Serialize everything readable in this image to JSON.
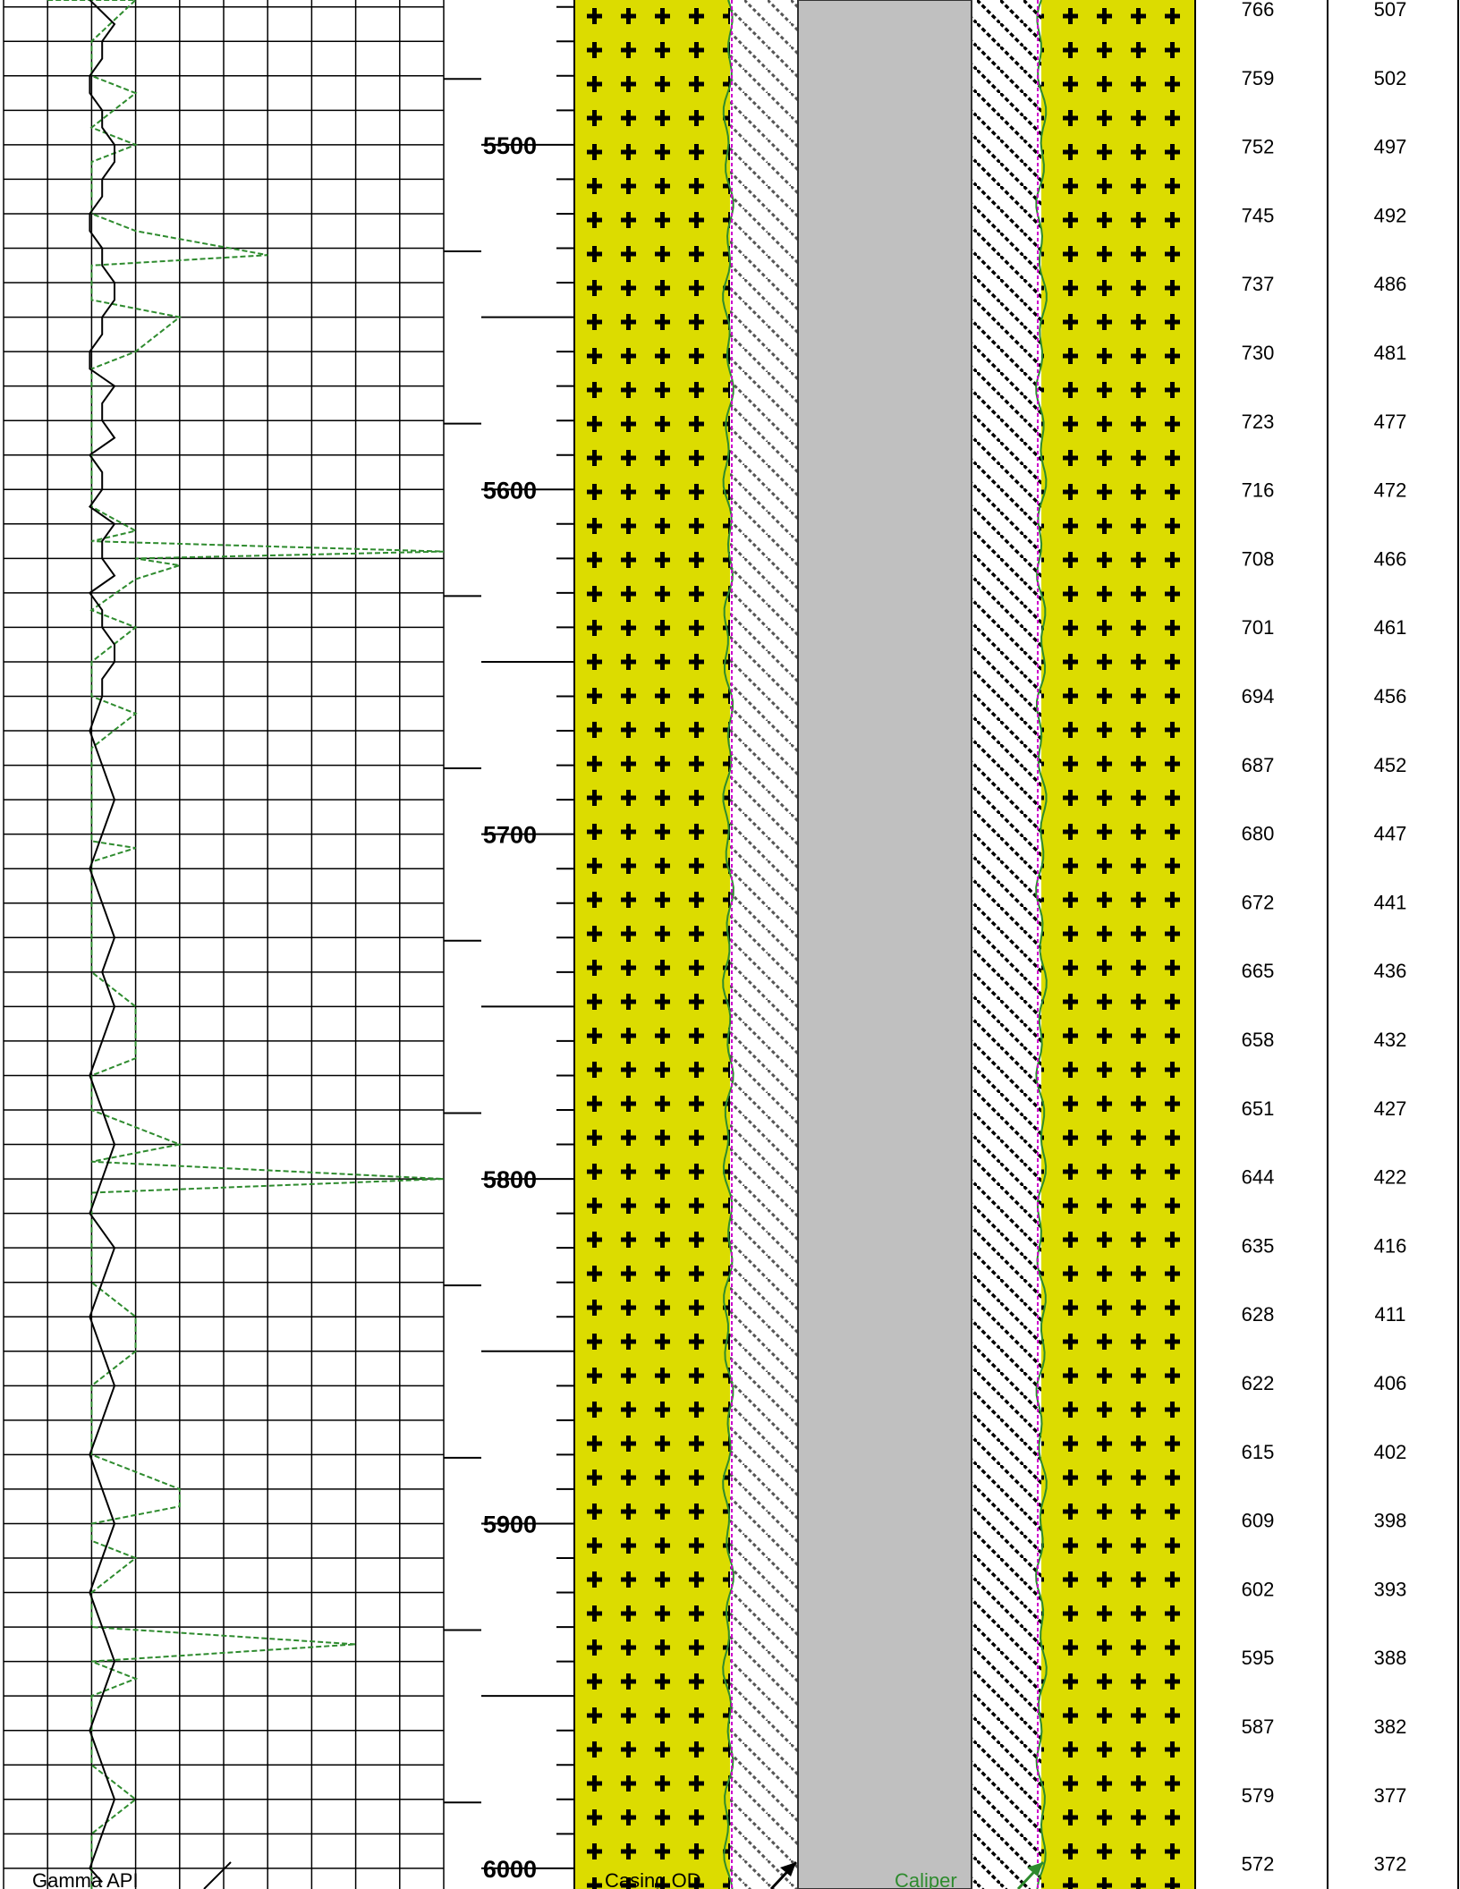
{
  "colors": {
    "gamma_curve": "#2e8b2e",
    "resistivity_curve": "#000000",
    "formation_fill": "#dcdc00",
    "cross_mark": "#000000",
    "casing_core": "#c0c0c0",
    "bit_line": "#cc00cc",
    "caliper_outline": "#2e8b2e",
    "grid": "#000000"
  },
  "labels": {
    "gamma": "Gamma API",
    "casing": "Casing OD",
    "caliper": "Caliper"
  },
  "chart_data": [
    {
      "type": "line",
      "title": "",
      "series": [
        {
          "name": "Gamma API",
          "x": [
            1,
            2,
            3,
            2,
            6,
            2,
            3,
            2,
            2,
            3,
            2,
            10,
            4,
            3,
            3,
            2,
            2,
            2,
            2,
            3,
            2,
            2,
            2,
            3,
            3,
            2,
            2,
            4,
            10,
            2,
            2,
            2,
            2,
            3,
            2,
            2,
            2,
            3,
            2,
            2,
            8,
            2,
            3,
            2,
            3,
            2,
            2,
            2,
            2,
            2,
            3,
            2,
            2,
            3,
            2,
            2,
            2,
            3,
            2,
            4,
            2,
            2,
            2,
            2,
            3,
            2,
            2,
            3,
            2,
            2,
            2,
            2,
            3,
            2,
            2,
            2,
            2,
            3,
            2,
            4,
            4,
            2,
            2,
            2,
            2,
            2
          ],
          "y": [
            5458,
            5480,
            5500,
            5520,
            5532,
            5545,
            5560,
            5580,
            5600,
            5612,
            5615,
            5618,
            5622,
            5626,
            5640,
            5660,
            5680,
            5700,
            5702,
            5704,
            5708,
            5720,
            5740,
            5760,
            5765,
            5770,
            5780,
            5790,
            5800,
            5804,
            5808,
            5812,
            5820,
            5840,
            5860,
            5880,
            5900,
            5910,
            5920,
            5930,
            5935,
            5940,
            5945,
            5960,
            5980,
            5990,
            5992,
            5994,
            6000,
            6006,
            5458,
            5470,
            5475,
            5485,
            5495,
            5505,
            5515,
            5525,
            5535,
            5550,
            5565,
            5585,
            5595,
            5605,
            5620,
            5635,
            5650,
            5665,
            5675,
            5690,
            5715,
            5730,
            5750,
            5775,
            5795,
            5815,
            5830,
            5850,
            5870,
            5890,
            5895,
            5905,
            5925,
            5950,
            5970,
            6004
          ]
        },
        {
          "name": "",
          "x": [
            7,
            8,
            7,
            8,
            9,
            8,
            7,
            8,
            9,
            8,
            7,
            9,
            8,
            7,
            8,
            9,
            8,
            7,
            8,
            9,
            8,
            7,
            8,
            9,
            8,
            7,
            8,
            9,
            8,
            9,
            8,
            7,
            8,
            9,
            8,
            7,
            9,
            8,
            7,
            8,
            9,
            8,
            7,
            8,
            9,
            8,
            7,
            8,
            9,
            8,
            7,
            8,
            9,
            8,
            7,
            8,
            9,
            8,
            7,
            8,
            9,
            8,
            7,
            8,
            9,
            8,
            7,
            8,
            9,
            8,
            7,
            8,
            9,
            8,
            9,
            8
          ],
          "y": [
            5458,
            5470,
            5480,
            5490,
            5500,
            5510,
            5520,
            5530,
            5540,
            5550,
            5560,
            5570,
            5580,
            5590,
            5600,
            5610,
            5620,
            5630,
            5640,
            5650,
            5660,
            5670,
            5680,
            5690,
            5700,
            5710,
            5720,
            5730,
            5740,
            5750,
            5760,
            5770,
            5780,
            5790,
            5800,
            5810,
            5820,
            5830,
            5840,
            5850,
            5860,
            5870,
            5880,
            5890,
            5900,
            5910,
            5920,
            5930,
            5940,
            5950,
            5960,
            5970,
            5980,
            5990,
            6000,
            6004,
            5465,
            5475,
            5485,
            5495,
            5505,
            5515,
            5525,
            5535,
            5545,
            5555,
            5565,
            5575,
            5585,
            5595,
            5605,
            5615,
            5625,
            5635,
            5645,
            5655
          ]
        }
      ],
      "ylim": [
        5458,
        6006
      ],
      "grid": true
    },
    {
      "type": "table",
      "depth_ticks": [
        5500,
        5600,
        5700,
        5800,
        5900,
        6000
      ],
      "columns": [
        {
          "name": "",
          "values": [
            766,
            759,
            752,
            745,
            737,
            730,
            723,
            716,
            708,
            701,
            694,
            687,
            680,
            672,
            665,
            658,
            651,
            644,
            635,
            628,
            622,
            615,
            609,
            602,
            595,
            587,
            579,
            572
          ]
        },
        {
          "name": "",
          "values": [
            507,
            502,
            497,
            492,
            486,
            481,
            477,
            472,
            466,
            461,
            456,
            452,
            447,
            441,
            436,
            432,
            427,
            422,
            416,
            411,
            406,
            402,
            398,
            393,
            388,
            382,
            377,
            372
          ]
        }
      ]
    }
  ]
}
